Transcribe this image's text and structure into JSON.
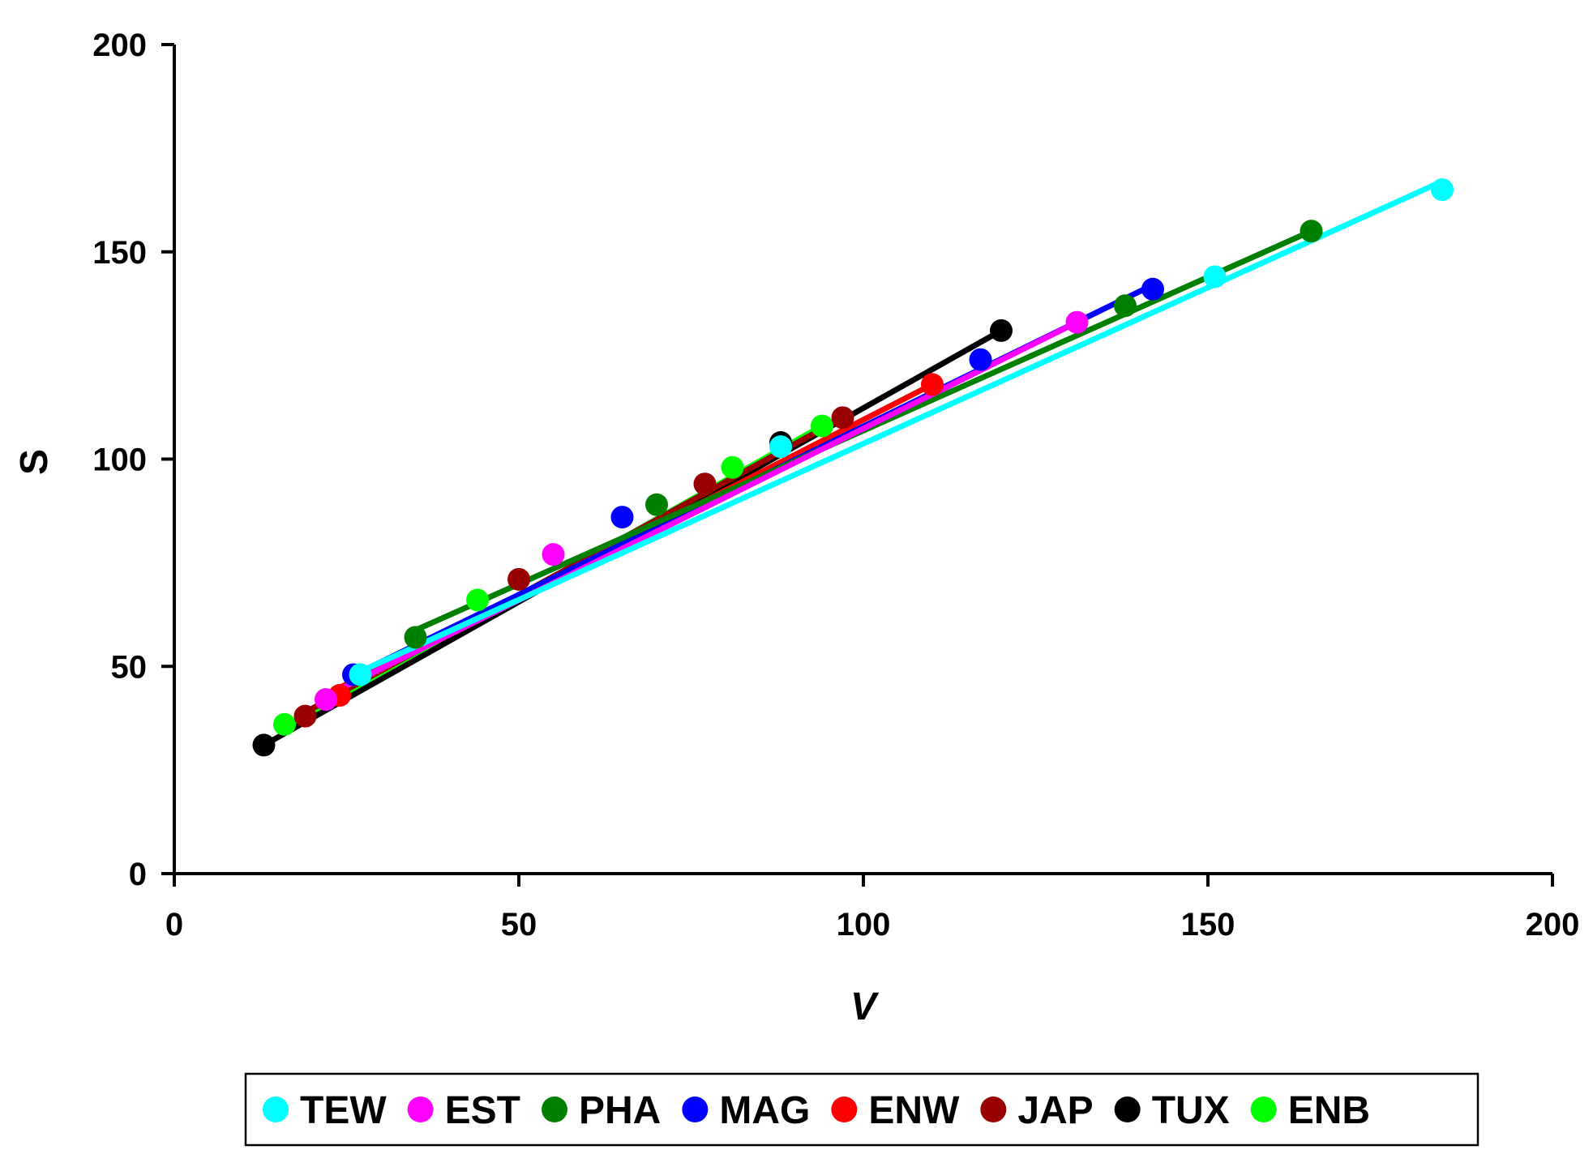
{
  "chart_data": {
    "type": "scatter",
    "title": "",
    "xlabel": "V",
    "ylabel": "S",
    "xlim": [
      0,
      200
    ],
    "ylim": [
      0,
      200
    ],
    "xticks": [
      "0",
      "50",
      "100",
      "150",
      "200"
    ],
    "yticks": [
      "0",
      "50",
      "100",
      "150",
      "200"
    ],
    "grid": false,
    "legend_position": "bottom",
    "series": [
      {
        "name": "TEW",
        "color": "#00FFFF",
        "x": [
          27,
          88,
          151,
          184
        ],
        "y": [
          48,
          103,
          144,
          165
        ],
        "fit": {
          "x": [
            26,
            184
          ],
          "y": [
            48,
            167
          ]
        }
      },
      {
        "name": "EST",
        "color": "#FF00FF",
        "x": [
          22,
          55,
          131
        ],
        "y": [
          42,
          77,
          133
        ],
        "fit": {
          "x": [
            21,
            131
          ],
          "y": [
            42,
            133
          ]
        }
      },
      {
        "name": "PHA",
        "color": "#008000",
        "x": [
          35,
          70,
          138,
          165
        ],
        "y": [
          57,
          89,
          137,
          155
        ],
        "fit": {
          "x": [
            34,
            165
          ],
          "y": [
            58,
            155
          ]
        }
      },
      {
        "name": "MAG",
        "color": "#0000FF",
        "x": [
          26,
          65,
          117,
          142
        ],
        "y": [
          48,
          86,
          124,
          141
        ],
        "fit": {
          "x": [
            25,
            142
          ],
          "y": [
            47,
            142
          ]
        }
      },
      {
        "name": "ENW",
        "color": "#FF0000",
        "x": [
          24,
          110
        ],
        "y": [
          43,
          118
        ],
        "fit": {
          "x": [
            23,
            110
          ],
          "y": [
            44,
            118
          ]
        }
      },
      {
        "name": "JAP",
        "color": "#990000",
        "x": [
          19,
          50,
          77,
          97
        ],
        "y": [
          38,
          71,
          94,
          110
        ],
        "fit": {
          "x": [
            18,
            97
          ],
          "y": [
            38,
            110
          ]
        }
      },
      {
        "name": "TUX",
        "color": "#000000",
        "x": [
          13,
          88,
          120
        ],
        "y": [
          31,
          104,
          131
        ],
        "fit": {
          "x": [
            13,
            120
          ],
          "y": [
            31,
            131
          ]
        }
      },
      {
        "name": "ENB",
        "color": "#00FF00",
        "x": [
          16,
          44,
          81,
          94
        ],
        "y": [
          36,
          66,
          98,
          108
        ],
        "fit": {
          "x": [
            16,
            94
          ],
          "y": [
            35,
            108
          ]
        }
      }
    ]
  }
}
